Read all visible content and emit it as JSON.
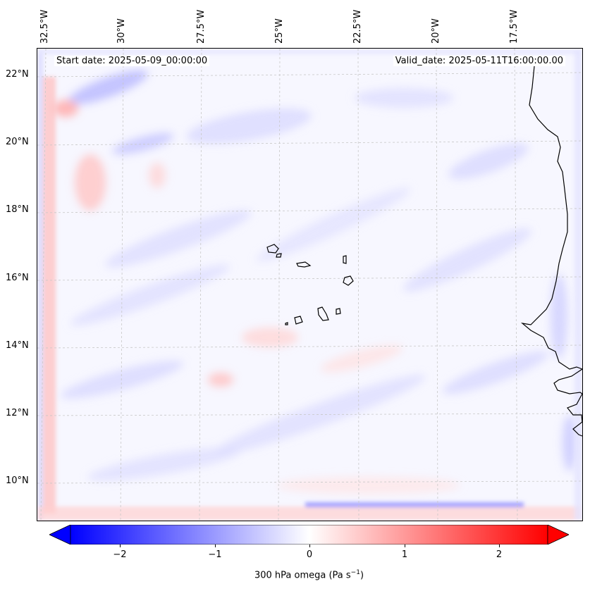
{
  "map": {
    "longitude_labels": [
      "32.5°W",
      "30°W",
      "27.5°W",
      "25°W",
      "22.5°W",
      "20°W",
      "17.5°W"
    ],
    "latitude_labels": [
      "22°N",
      "20°N",
      "18°N",
      "16°N",
      "14°N",
      "12°N",
      "10°N"
    ],
    "start_date_label": "Start date: 2025-05-09_00:00:00",
    "valid_date_label": "Valid_date: 2025-05-11T16:00:00.00",
    "coastline_color": "#000000",
    "gridline_color": "#c8c8c8"
  },
  "colorbar": {
    "label_main": "300 hPa omega (Pa s",
    "label_exp": "−1",
    "label_end": ")",
    "ticks": [
      "−2",
      "−1",
      "0",
      "1",
      "2"
    ],
    "tick_values": [
      -2,
      -1,
      0,
      1,
      2
    ],
    "range": [
      -2.5,
      2.5
    ],
    "colormap": "bwr",
    "low_color": "#0000ff",
    "mid_color": "#ffffff",
    "high_color": "#ff0000"
  }
}
